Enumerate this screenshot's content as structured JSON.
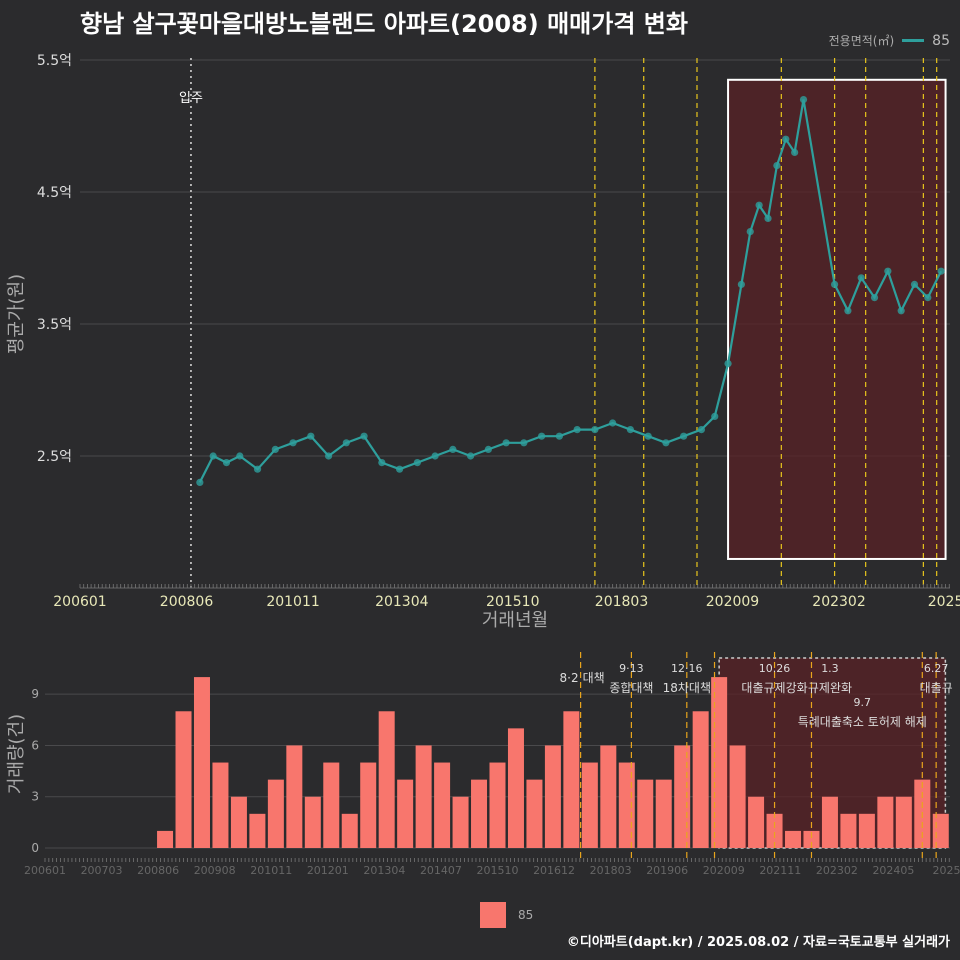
{
  "title": "향남 살구꽃마을대방노블랜드 아파트(2008) 매매가격 변화",
  "legend": {
    "title": "전용면적(㎡)",
    "series_label": "85"
  },
  "footer": "©디아파트(dapt.kr) / 2025.08.02 / 자료=국토교통부 실거래가",
  "colors": {
    "background": "#2b2b2d",
    "price_line": "#2e9f9c",
    "volume_bar": "#f8766d",
    "policy_line": "#e8c51d",
    "highlight": "#5a2226"
  },
  "chart_data": [
    {
      "type": "line",
      "title": "향남 살구꽃마을대방노블랜드 아파트(2008) 매매가격 변화",
      "xlabel": "거래년월",
      "ylabel": "평균가(원)",
      "x_ticks": [
        "200601",
        "200806",
        "201011",
        "201304",
        "201510",
        "201803",
        "202009",
        "202302",
        "2025"
      ],
      "x_range": [
        2006.0,
        2025.6
      ],
      "y_ticks": [
        "2.5억",
        "3.5억",
        "4.5억",
        "5.5억"
      ],
      "y_tick_values": [
        2.5,
        3.5,
        4.5,
        5.5
      ],
      "ylim": [
        1.5,
        5.5
      ],
      "annotation": {
        "label": "입주",
        "x": 2008.5
      },
      "policy_lines": [
        2017.6,
        2018.7,
        2019.9,
        2021.8,
        2023.0,
        2023.7,
        2025.0,
        2025.3
      ],
      "highlight_range": [
        2020.6,
        2025.5
      ],
      "series": [
        {
          "name": "85",
          "x": [
            2008.7,
            2009.0,
            2009.3,
            2009.6,
            2010.0,
            2010.4,
            2010.8,
            2011.2,
            2011.6,
            2012.0,
            2012.4,
            2012.8,
            2013.2,
            2013.6,
            2014.0,
            2014.4,
            2014.8,
            2015.2,
            2015.6,
            2016.0,
            2016.4,
            2016.8,
            2017.2,
            2017.6,
            2018.0,
            2018.4,
            2018.8,
            2019.2,
            2019.6,
            2020.0,
            2020.3,
            2020.6,
            2020.9,
            2021.1,
            2021.3,
            2021.5,
            2021.7,
            2021.9,
            2022.1,
            2022.3,
            2023.0,
            2023.3,
            2023.6,
            2023.9,
            2024.2,
            2024.5,
            2024.8,
            2025.1,
            2025.4
          ],
          "values": [
            2.3,
            2.5,
            2.45,
            2.5,
            2.4,
            2.55,
            2.6,
            2.65,
            2.5,
            2.6,
            2.65,
            2.45,
            2.4,
            2.45,
            2.5,
            2.55,
            2.5,
            2.55,
            2.6,
            2.6,
            2.65,
            2.65,
            2.7,
            2.7,
            2.75,
            2.7,
            2.65,
            2.6,
            2.65,
            2.7,
            2.8,
            3.2,
            3.8,
            4.2,
            4.4,
            4.3,
            4.7,
            4.9,
            4.8,
            5.2,
            3.8,
            3.6,
            3.85,
            3.7,
            3.9,
            3.6,
            3.8,
            3.7,
            3.9
          ]
        }
      ]
    },
    {
      "type": "bar",
      "xlabel": "",
      "ylabel": "거래량(건)",
      "y_ticks": [
        "0",
        "3",
        "6",
        "9"
      ],
      "y_tick_values": [
        0,
        3,
        6,
        9
      ],
      "ylim": [
        0,
        11
      ],
      "x_ticks": [
        "200601",
        "200703",
        "200806",
        "200908",
        "201011",
        "201201",
        "201304",
        "201407",
        "201510",
        "201612",
        "201803",
        "201906",
        "202009",
        "202111",
        "202302",
        "202405",
        "20250"
      ],
      "x_range": [
        2006.0,
        2025.6
      ],
      "policy_lines": [
        2017.6,
        2018.7,
        2019.9,
        2020.5,
        2021.8,
        2022.6,
        2025.0,
        2025.3
      ],
      "policy_labels": [
        {
          "date": "8·2",
          "text": "대책",
          "x": 2017.6,
          "row": 0
        },
        {
          "date": "9·13",
          "text": "종합대책",
          "x": 2018.7,
          "row": 1
        },
        {
          "date": "12·16",
          "text": "18차대책",
          "x": 2019.9,
          "row": 1
        },
        {
          "date": "10.26",
          "text": "대출규제강화",
          "x": 2021.8,
          "row": 1
        },
        {
          "date": "1.3",
          "text": "규제완화",
          "x": 2023.0,
          "row": 1
        },
        {
          "date": "9.7",
          "text": "특례대출축소 토허제 해제",
          "x": 2023.7,
          "row": 2
        },
        {
          "date": "6.27",
          "text": "대출규",
          "x": 2025.3,
          "row": 1
        }
      ],
      "highlight_range": [
        2020.6,
        2025.5
      ],
      "series": [
        {
          "name": "85",
          "x": [
            2008.6,
            2009.0,
            2009.4,
            2009.8,
            2010.2,
            2010.6,
            2011.0,
            2011.4,
            2011.8,
            2012.2,
            2012.6,
            2013.0,
            2013.4,
            2013.8,
            2014.2,
            2014.6,
            2015.0,
            2015.4,
            2015.8,
            2016.2,
            2016.6,
            2017.0,
            2017.4,
            2017.8,
            2018.2,
            2018.6,
            2019.0,
            2019.4,
            2019.8,
            2020.2,
            2020.6,
            2021.0,
            2021.4,
            2021.8,
            2022.2,
            2022.6,
            2023.0,
            2023.4,
            2023.8,
            2024.2,
            2024.6,
            2025.0,
            2025.4
          ],
          "values": [
            1,
            8,
            10,
            5,
            3,
            2,
            4,
            6,
            3,
            5,
            2,
            5,
            8,
            4,
            6,
            5,
            3,
            4,
            5,
            7,
            4,
            6,
            8,
            5,
            6,
            5,
            4,
            4,
            6,
            8,
            10,
            6,
            3,
            2,
            1,
            1,
            3,
            2,
            2,
            3,
            3,
            4,
            2
          ]
        }
      ]
    }
  ]
}
